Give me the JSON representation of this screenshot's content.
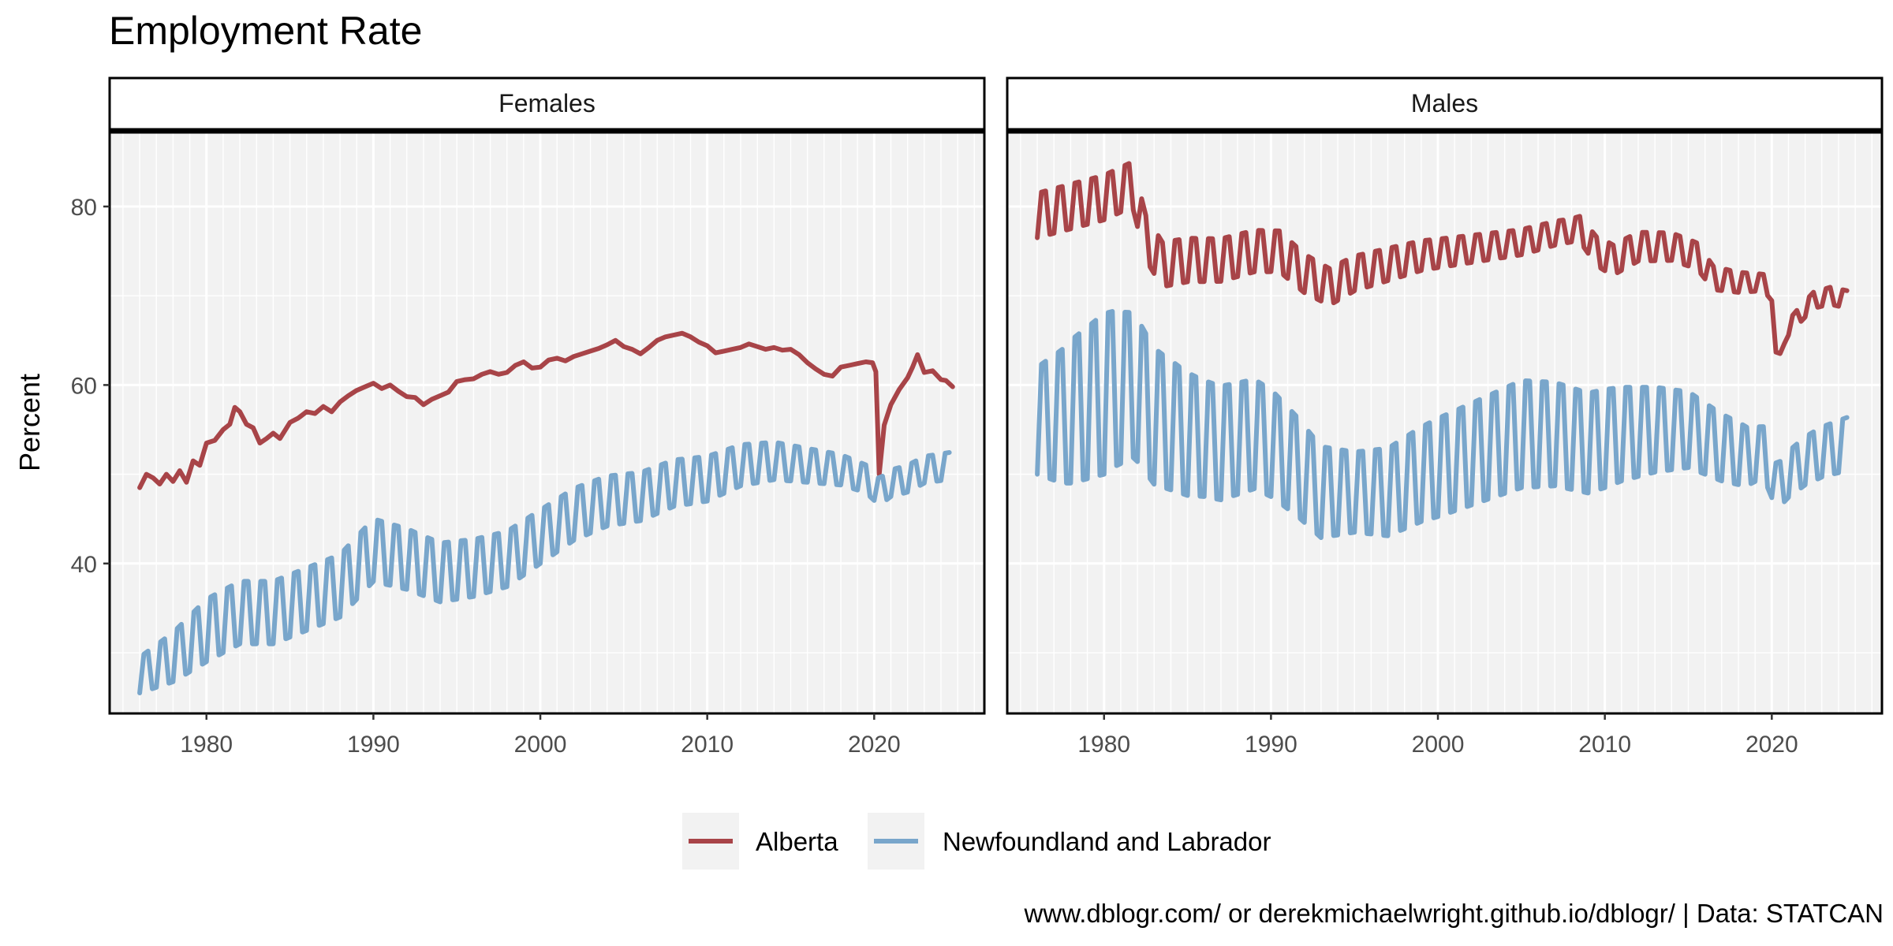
{
  "chart_data": {
    "type": "line",
    "title": "Employment Rate",
    "ylabel": "Percent",
    "xlabel": "",
    "caption": "www.dblogr.com/ or derekmichaelwright.github.io/dblogr/ | Data: STATCAN",
    "xlim": [
      1974.2,
      2026.6
    ],
    "ylim": [
      23.2,
      88.3
    ],
    "x_ticks": [
      1980,
      1990,
      2000,
      2010,
      2020
    ],
    "y_ticks": [
      40,
      60,
      80
    ],
    "grid": true,
    "legend_position": "bottom",
    "colors": {
      "Alberta": "#a84448",
      "Newfoundland and Labrador": "#79a6cb"
    },
    "series_names": [
      "Alberta",
      "Newfoundland and Labrador"
    ],
    "panels": [
      {
        "label": "Females",
        "series": [
          {
            "name": "Alberta",
            "points": [
              [
                1976.0,
                48.5
              ],
              [
                1976.4,
                50.0
              ],
              [
                1976.8,
                49.6
              ],
              [
                1977.2,
                48.9
              ],
              [
                1977.6,
                50.0
              ],
              [
                1978.0,
                49.2
              ],
              [
                1978.4,
                50.4
              ],
              [
                1978.8,
                49.1
              ],
              [
                1979.2,
                51.5
              ],
              [
                1979.6,
                51.0
              ],
              [
                1980.0,
                53.5
              ],
              [
                1980.5,
                53.8
              ],
              [
                1981.0,
                55.0
              ],
              [
                1981.4,
                55.6
              ],
              [
                1981.7,
                57.5
              ],
              [
                1982.0,
                57.0
              ],
              [
                1982.4,
                55.6
              ],
              [
                1982.8,
                55.2
              ],
              [
                1983.2,
                53.5
              ],
              [
                1983.6,
                54.0
              ],
              [
                1984.0,
                54.6
              ],
              [
                1984.4,
                54.0
              ],
              [
                1985.0,
                55.8
              ],
              [
                1985.5,
                56.3
              ],
              [
                1986.0,
                57.0
              ],
              [
                1986.5,
                56.8
              ],
              [
                1987.0,
                57.6
              ],
              [
                1987.5,
                57.0
              ],
              [
                1988.0,
                58.1
              ],
              [
                1988.5,
                58.8
              ],
              [
                1989.0,
                59.4
              ],
              [
                1989.5,
                59.8
              ],
              [
                1990.0,
                60.2
              ],
              [
                1990.5,
                59.6
              ],
              [
                1991.0,
                60.0
              ],
              [
                1991.5,
                59.3
              ],
              [
                1992.0,
                58.7
              ],
              [
                1992.5,
                58.6
              ],
              [
                1993.0,
                57.8
              ],
              [
                1993.5,
                58.4
              ],
              [
                1994.0,
                58.8
              ],
              [
                1994.5,
                59.2
              ],
              [
                1995.0,
                60.4
              ],
              [
                1995.5,
                60.6
              ],
              [
                1996.0,
                60.7
              ],
              [
                1996.5,
                61.2
              ],
              [
                1997.0,
                61.5
              ],
              [
                1997.5,
                61.2
              ],
              [
                1998.0,
                61.4
              ],
              [
                1998.5,
                62.2
              ],
              [
                1999.0,
                62.6
              ],
              [
                1999.5,
                61.9
              ],
              [
                2000.0,
                62.0
              ],
              [
                2000.5,
                62.8
              ],
              [
                2001.0,
                63.0
              ],
              [
                2001.5,
                62.7
              ],
              [
                2002.0,
                63.2
              ],
              [
                2002.5,
                63.5
              ],
              [
                2003.0,
                63.8
              ],
              [
                2003.5,
                64.1
              ],
              [
                2004.0,
                64.5
              ],
              [
                2004.5,
                65.0
              ],
              [
                2005.0,
                64.3
              ],
              [
                2005.5,
                64.0
              ],
              [
                2006.0,
                63.5
              ],
              [
                2006.5,
                64.2
              ],
              [
                2007.0,
                65.0
              ],
              [
                2007.5,
                65.4
              ],
              [
                2008.0,
                65.6
              ],
              [
                2008.5,
                65.8
              ],
              [
                2009.0,
                65.4
              ],
              [
                2009.5,
                64.8
              ],
              [
                2010.0,
                64.4
              ],
              [
                2010.5,
                63.6
              ],
              [
                2011.0,
                63.8
              ],
              [
                2011.5,
                64.0
              ],
              [
                2012.0,
                64.2
              ],
              [
                2012.5,
                64.6
              ],
              [
                2013.0,
                64.3
              ],
              [
                2013.5,
                64.0
              ],
              [
                2014.0,
                64.2
              ],
              [
                2014.5,
                63.9
              ],
              [
                2015.0,
                64.0
              ],
              [
                2015.5,
                63.4
              ],
              [
                2016.0,
                62.5
              ],
              [
                2016.5,
                61.8
              ],
              [
                2017.0,
                61.2
              ],
              [
                2017.5,
                61.0
              ],
              [
                2018.0,
                62.0
              ],
              [
                2018.5,
                62.2
              ],
              [
                2019.0,
                62.4
              ],
              [
                2019.5,
                62.6
              ],
              [
                2019.9,
                62.5
              ],
              [
                2020.1,
                61.5
              ],
              [
                2020.3,
                50.0
              ],
              [
                2020.6,
                55.5
              ],
              [
                2021.0,
                57.8
              ],
              [
                2021.5,
                59.5
              ],
              [
                2022.0,
                60.8
              ],
              [
                2022.3,
                62.0
              ],
              [
                2022.6,
                63.4
              ],
              [
                2023.0,
                61.4
              ],
              [
                2023.5,
                61.6
              ],
              [
                2024.0,
                60.6
              ],
              [
                2024.3,
                60.5
              ],
              [
                2024.7,
                59.8
              ]
            ]
          },
          {
            "name": "Newfoundland and Labrador",
            "seasonal": true,
            "trend": [
              [
                1976.0,
                27.5
              ],
              [
                1978.0,
                29.5
              ],
              [
                1980.0,
                32.5
              ],
              [
                1982.0,
                34.5
              ],
              [
                1984.0,
                34.5
              ],
              [
                1986.0,
                36.0
              ],
              [
                1988.0,
                37.5
              ],
              [
                1990.0,
                41.5
              ],
              [
                1992.0,
                40.5
              ],
              [
                1994.0,
                39.0
              ],
              [
                1996.0,
                39.5
              ],
              [
                1998.0,
                40.5
              ],
              [
                2000.0,
                43.0
              ],
              [
                2002.0,
                45.5
              ],
              [
                2004.0,
                47.0
              ],
              [
                2006.0,
                47.5
              ],
              [
                2008.0,
                49.0
              ],
              [
                2010.0,
                49.5
              ],
              [
                2012.0,
                51.0
              ],
              [
                2014.0,
                51.5
              ],
              [
                2016.0,
                51.0
              ],
              [
                2018.0,
                50.5
              ],
              [
                2019.5,
                49.5
              ],
              [
                2020.3,
                48.0
              ],
              [
                2021.0,
                49.0
              ],
              [
                2022.0,
                49.5
              ],
              [
                2023.0,
                50.5
              ],
              [
                2024.7,
                51.0
              ]
            ],
            "amplitude": [
              [
                1976.0,
                2.0
              ],
              [
                1980.0,
                3.5
              ],
              [
                1990.0,
                3.5
              ],
              [
                2000.0,
                3.0
              ],
              [
                2010.0,
                2.5
              ],
              [
                2020.0,
                1.5
              ],
              [
                2024.7,
                1.5
              ]
            ]
          }
        ]
      },
      {
        "label": "Males",
        "series": [
          {
            "name": "Alberta",
            "seasonal": true,
            "trend": [
              [
                1976.0,
                79.0
              ],
              [
                1978.0,
                80.0
              ],
              [
                1980.0,
                81.0
              ],
              [
                1981.7,
                82.5
              ],
              [
                1982.5,
                76.5
              ],
              [
                1983.5,
                73.5
              ],
              [
                1985.0,
                74.0
              ],
              [
                1987.0,
                74.0
              ],
              [
                1989.0,
                75.0
              ],
              [
                1990.5,
                75.0
              ],
              [
                1992.0,
                72.5
              ],
              [
                1993.5,
                71.0
              ],
              [
                1995.0,
                72.5
              ],
              [
                1997.0,
                73.5
              ],
              [
                1999.0,
                74.5
              ],
              [
                2001.0,
                75.0
              ],
              [
                2003.0,
                75.5
              ],
              [
                2005.0,
                76.0
              ],
              [
                2007.0,
                77.0
              ],
              [
                2008.5,
                77.5
              ],
              [
                2009.5,
                75.0
              ],
              [
                2010.5,
                74.0
              ],
              [
                2012.0,
                75.5
              ],
              [
                2014.0,
                75.5
              ],
              [
                2015.5,
                74.5
              ],
              [
                2016.5,
                72.0
              ],
              [
                2018.0,
                71.5
              ],
              [
                2019.5,
                71.5
              ],
              [
                2020.1,
                70.0
              ],
              [
                2020.3,
                60.5
              ],
              [
                2020.8,
                66.0
              ],
              [
                2021.5,
                67.5
              ],
              [
                2022.5,
                69.5
              ],
              [
                2023.5,
                70.0
              ],
              [
                2024.7,
                69.5
              ]
            ],
            "amplitude": [
              [
                1976.0,
                2.5
              ],
              [
                1981.7,
                2.5
              ],
              [
                1983.0,
                2.5
              ],
              [
                1990.0,
                2.3
              ],
              [
                2000.0,
                1.6
              ],
              [
                2008.0,
                1.3
              ],
              [
                2010.0,
                1.7
              ],
              [
                2015.0,
                1.5
              ],
              [
                2019.0,
                1.0
              ],
              [
                2020.0,
                0.8
              ],
              [
                2024.7,
                1.0
              ]
            ]
          },
          {
            "name": "Newfoundland and Labrador",
            "seasonal": true,
            "trend": [
              [
                1976.0,
                56.0
              ],
              [
                1977.5,
                56.5
              ],
              [
                1979.0,
                58.0
              ],
              [
                1980.5,
                59.5
              ],
              [
                1981.8,
                60.0
              ],
              [
                1983.0,
                56.5
              ],
              [
                1985.0,
                54.5
              ],
              [
                1987.0,
                53.5
              ],
              [
                1989.0,
                54.5
              ],
              [
                1990.0,
                53.5
              ],
              [
                1991.5,
                51.0
              ],
              [
                1993.0,
                48.0
              ],
              [
                1995.0,
                48.0
              ],
              [
                1997.0,
                48.0
              ],
              [
                1999.0,
                50.0
              ],
              [
                2001.0,
                51.5
              ],
              [
                2003.0,
                53.0
              ],
              [
                2005.0,
                54.5
              ],
              [
                2007.0,
                54.5
              ],
              [
                2009.0,
                53.5
              ],
              [
                2011.0,
                54.5
              ],
              [
                2013.0,
                55.0
              ],
              [
                2015.0,
                55.0
              ],
              [
                2017.0,
                53.0
              ],
              [
                2018.5,
                52.0
              ],
              [
                2019.5,
                52.5
              ],
              [
                2020.3,
                48.5
              ],
              [
                2021.0,
                50.0
              ],
              [
                2022.0,
                51.5
              ],
              [
                2023.0,
                52.5
              ],
              [
                2024.7,
                53.5
              ]
            ],
            "amplitude": [
              [
                1976.0,
                6.0
              ],
              [
                1978.0,
                8.0
              ],
              [
                1980.0,
                9.0
              ],
              [
                1982.0,
                8.0
              ],
              [
                1986.0,
                6.5
              ],
              [
                1990.0,
                6.0
              ],
              [
                1995.0,
                4.5
              ],
              [
                2000.0,
                5.5
              ],
              [
                2005.0,
                6.0
              ],
              [
                2010.0,
                5.5
              ],
              [
                2014.0,
                4.5
              ],
              [
                2018.0,
                3.5
              ],
              [
                2020.3,
                2.5
              ],
              [
                2024.7,
                3.0
              ]
            ]
          }
        ]
      }
    ]
  }
}
